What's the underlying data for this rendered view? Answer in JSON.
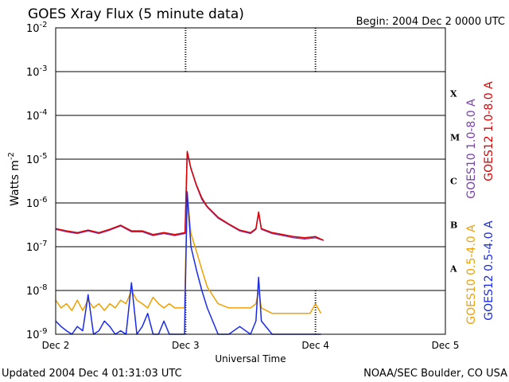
{
  "header": {
    "title": "GOES Xray Flux (5 minute data)",
    "begin": "Begin:  2004 Dec 2 0000 UTC"
  },
  "footer": {
    "updated": "Updated 2004 Dec  4 01:31:03 UTC",
    "source": "NOAA/SEC Boulder, CO USA"
  },
  "chart_data": {
    "type": "line",
    "title": "GOES Xray Flux (5 minute data)",
    "xlabel": "Universal Time",
    "ylabel": "Watts m",
    "ylabel_superscript": "-2",
    "yscale": "log",
    "ylim": [
      1e-09,
      0.01
    ],
    "xlim": [
      0,
      72
    ],
    "x_unit": "hours since Dec 2 0000 UTC",
    "grid": "horizontal lines at each decade",
    "x_ticks": [
      {
        "x": 0,
        "label": "Dec 2"
      },
      {
        "x": 24,
        "label": "Dec 3"
      },
      {
        "x": 48,
        "label": "Dec 4"
      },
      {
        "x": 72,
        "label": "Dec 5"
      }
    ],
    "y_ticks": [
      {
        "exp": -9,
        "mant": "10",
        "sup": "-9"
      },
      {
        "exp": -8,
        "mant": "10",
        "sup": "-8"
      },
      {
        "exp": -7,
        "mant": "10",
        "sup": "-7"
      },
      {
        "exp": -6,
        "mant": "10",
        "sup": "-6"
      },
      {
        "exp": -5,
        "mant": "10",
        "sup": "-5"
      },
      {
        "exp": -4,
        "mant": "10",
        "sup": "-4"
      },
      {
        "exp": -3,
        "mant": "10",
        "sup": "-3"
      },
      {
        "exp": -2,
        "mant": "10",
        "sup": "-2"
      }
    ],
    "flare_classes": [
      {
        "label": "A",
        "exp": -7.5
      },
      {
        "label": "B",
        "exp": -6.5
      },
      {
        "label": "C",
        "exp": -5.5
      },
      {
        "label": "M",
        "exp": -4.5
      },
      {
        "label": "X",
        "exp": -3.5
      }
    ],
    "legend": {
      "placement": "right, vertical",
      "entries": [
        {
          "label": "GOES10 1.0-8.0 A",
          "color": "#7a3fb0"
        },
        {
          "label": "GOES12 1.0-8.0 A",
          "color": "#dd0000"
        },
        {
          "label": "GOES10 0.5-4.0 A",
          "color": "#f0a000"
        },
        {
          "label": "GOES12 0.5-4.0 A",
          "color": "#1a2be6"
        }
      ]
    },
    "series": [
      {
        "name": "GOES10 1.0-8.0 A",
        "color": "#7a3fb0",
        "x": [
          0,
          2,
          4,
          6,
          8,
          10,
          12,
          14,
          16,
          18,
          20,
          22,
          23.9,
          24.3,
          25,
          26,
          27,
          28,
          30,
          32,
          34,
          36,
          37,
          37.5,
          38,
          40,
          42,
          44,
          46,
          48,
          49.5
        ],
        "y": [
          2.5e-07,
          2.2e-07,
          2e-07,
          2.3e-07,
          2e-07,
          2.4e-07,
          3e-07,
          2.2e-07,
          2.2e-07,
          1.8e-07,
          2e-07,
          1.8e-07,
          2e-07,
          1.4e-05,
          6e-06,
          2.5e-06,
          1.2e-06,
          8e-07,
          4.5e-07,
          3.2e-07,
          2.3e-07,
          2e-07,
          2.5e-07,
          6e-07,
          2.5e-07,
          2e-07,
          1.8e-07,
          1.6e-07,
          1.5e-07,
          1.6e-07,
          1.4e-07
        ]
      },
      {
        "name": "GOES12 1.0-8.0 A",
        "color": "#dd0000",
        "x": [
          0,
          2,
          4,
          6,
          8,
          10,
          12,
          14,
          16,
          18,
          20,
          22,
          23.9,
          24.3,
          25,
          26,
          27,
          28,
          30,
          32,
          34,
          36,
          37,
          37.5,
          38,
          40,
          42,
          44,
          46,
          48,
          49.5
        ],
        "y": [
          2.6e-07,
          2.3e-07,
          2.1e-07,
          2.4e-07,
          2.1e-07,
          2.5e-07,
          3.1e-07,
          2.3e-07,
          2.3e-07,
          1.9e-07,
          2.1e-07,
          1.9e-07,
          2.1e-07,
          1.5e-05,
          6.2e-06,
          2.6e-06,
          1.3e-06,
          8.3e-07,
          4.7e-07,
          3.3e-07,
          2.4e-07,
          2.1e-07,
          2.6e-07,
          6.2e-07,
          2.6e-07,
          2.1e-07,
          1.9e-07,
          1.7e-07,
          1.6e-07,
          1.7e-07,
          1.4e-07
        ]
      },
      {
        "name": "GOES10 0.5-4.0 A",
        "color": "#f0a000",
        "x": [
          0,
          1,
          2,
          3,
          4,
          5,
          6,
          7,
          8,
          9,
          10,
          11,
          12,
          13,
          14,
          15,
          16,
          17,
          18,
          19,
          20,
          21,
          22,
          23.8,
          24.3,
          25,
          26,
          27,
          28,
          30,
          32,
          34,
          36,
          37,
          37.5,
          38,
          40,
          42,
          44,
          46,
          47,
          48,
          49
        ],
        "y": [
          6e-09,
          4e-09,
          5e-09,
          3.5e-09,
          6e-09,
          3.5e-09,
          6e-09,
          4e-09,
          5e-09,
          3.5e-09,
          5e-09,
          4e-09,
          6e-09,
          5e-09,
          1e-08,
          6e-09,
          5e-09,
          4e-09,
          7e-09,
          5e-09,
          4e-09,
          5e-09,
          4e-09,
          4e-09,
          1.5e-06,
          2e-07,
          8e-08,
          3e-08,
          1.2e-08,
          5e-09,
          4e-09,
          4e-09,
          4e-09,
          5e-09,
          1e-08,
          4e-09,
          3e-09,
          3e-09,
          3e-09,
          3e-09,
          3e-09,
          5e-09,
          3e-09
        ]
      },
      {
        "name": "GOES12 0.5-4.0 A",
        "color": "#1a2be6",
        "x": [
          0,
          1,
          2,
          3,
          4,
          5,
          6,
          7,
          8,
          9,
          10,
          11,
          12,
          13,
          14,
          15,
          16,
          17,
          18,
          19,
          20,
          21,
          22,
          23.8,
          24.3,
          25,
          26,
          27,
          28,
          29,
          30,
          32,
          34,
          36,
          37,
          37.5,
          38,
          40,
          42,
          44,
          46,
          47,
          48,
          49
        ],
        "y": [
          2e-09,
          1.5e-09,
          1.2e-09,
          1e-09,
          1.5e-09,
          1.2e-09,
          8e-09,
          1e-09,
          1.2e-09,
          2e-09,
          1.5e-09,
          1e-09,
          1.2e-09,
          1e-09,
          1.5e-08,
          1e-09,
          1.5e-09,
          3e-09,
          1e-09,
          1e-09,
          2e-09,
          1e-09,
          1e-09,
          1e-09,
          1.8e-06,
          1e-07,
          3e-08,
          1e-08,
          4e-09,
          2e-09,
          1e-09,
          1e-09,
          1.5e-09,
          1e-09,
          2e-09,
          2e-08,
          2e-09,
          1e-09,
          1e-09,
          1e-09,
          1e-09,
          1e-09,
          1e-09,
          1e-09
        ]
      }
    ]
  }
}
